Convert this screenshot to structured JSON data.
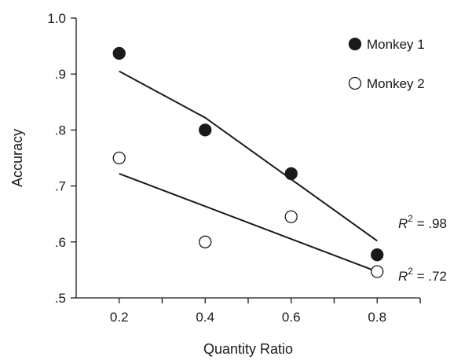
{
  "chart_data": {
    "type": "scatter",
    "xlabel": "Quantity Ratio",
    "ylabel": "Accuracy",
    "xlim": [
      0.1,
      0.9
    ],
    "ylim": [
      0.5,
      1.0
    ],
    "x_ticks": [
      0.2,
      0.4,
      0.6,
      0.8
    ],
    "x_tick_labels": [
      "0.2",
      "0.4",
      "0.6",
      "0.8"
    ],
    "y_ticks": [
      0.5,
      0.6,
      0.7,
      0.8,
      0.9,
      1.0
    ],
    "y_tick_labels": [
      ".5",
      ".6",
      ".7",
      ".8",
      ".9",
      "1.0"
    ],
    "grid": false,
    "legend_position": "top-right",
    "series": [
      {
        "name": "Monkey 1",
        "marker": "filled-circle",
        "x": [
          0.2,
          0.4,
          0.6,
          0.8
        ],
        "y": [
          0.937,
          0.8,
          0.722,
          0.577
        ],
        "fit": {
          "x": [
            0.2,
            0.4,
            0.8
          ],
          "y": [
            0.905,
            0.822,
            0.602
          ]
        },
        "r2_label": {
          "prefix": "R",
          "sup": "2",
          "suffix": " = .98"
        }
      },
      {
        "name": "Monkey 2",
        "marker": "open-circle",
        "x": [
          0.2,
          0.4,
          0.6,
          0.8
        ],
        "y": [
          0.75,
          0.6,
          0.645,
          0.547
        ],
        "fit": {
          "x": [
            0.2,
            0.8
          ],
          "y": [
            0.722,
            0.547
          ]
        },
        "r2_label": {
          "prefix": "R",
          "sup": "2",
          "suffix": " = .72"
        }
      }
    ]
  },
  "colors": {
    "axis": "#1a1a1a",
    "marker_fill": "#1a1a1a",
    "open_fill": "#ffffff"
  }
}
